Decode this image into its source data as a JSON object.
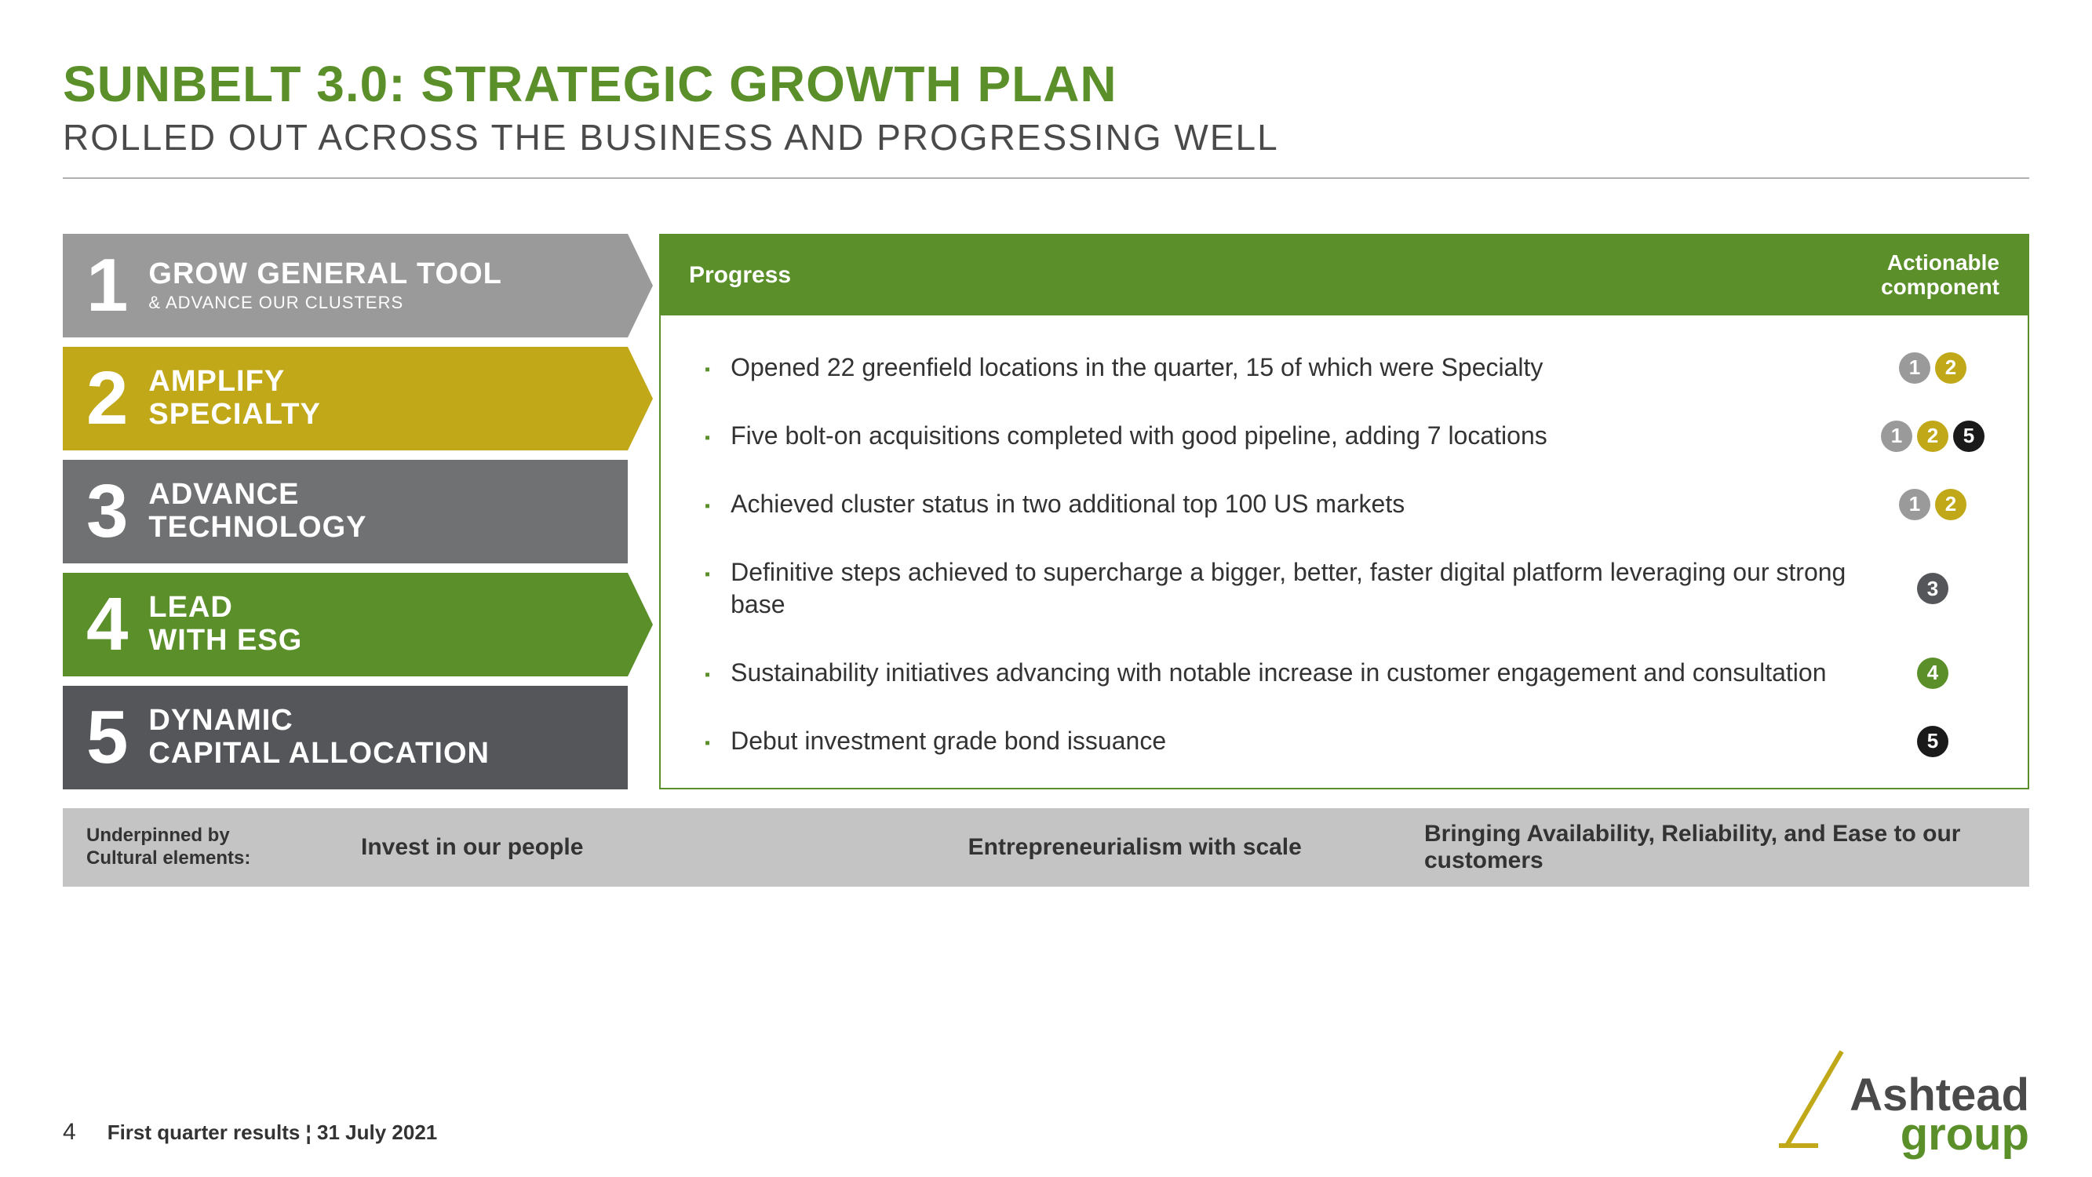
{
  "colors": {
    "green": "#5a8f29",
    "grey_text": "#4a4a4a",
    "pillar_grey_light": "#9a9a9a",
    "pillar_yellow": "#c0a818",
    "pillar_grey_med": "#6f7173",
    "pillar_grey_dark": "#54565a",
    "badge_grey": "#9a9a9a",
    "badge_yellow": "#c0a818",
    "badge_darkgrey": "#54565a",
    "badge_green": "#5a8f29",
    "badge_black": "#1a1a1a"
  },
  "title": "SUNBELT 3.0: STRATEGIC GROWTH PLAN",
  "subtitle": "ROLLED OUT ACROSS THE BUSINESS AND PROGRESSING WELL",
  "pillars": [
    {
      "num": "1",
      "line1": "GROW GENERAL TOOL",
      "line2": "",
      "sub": "& ADVANCE OUR CLUSTERS",
      "bg": "#9a9a9a",
      "arrow": true,
      "acls": "c0"
    },
    {
      "num": "2",
      "line1": "AMPLIFY",
      "line2": "SPECIALTY",
      "sub": "",
      "bg": "#c0a818",
      "arrow": true,
      "acls": "c1"
    },
    {
      "num": "3",
      "line1": "ADVANCE",
      "line2": "TECHNOLOGY",
      "sub": "",
      "bg": "#6f7173",
      "arrow": false,
      "acls": ""
    },
    {
      "num": "4",
      "line1": "LEAD",
      "line2": "WITH ESG",
      "sub": "",
      "bg": "#5a8f29",
      "arrow": true,
      "acls": "c3"
    },
    {
      "num": "5",
      "line1": "DYNAMIC",
      "line2": "CAPITAL ALLOCATION",
      "sub": "",
      "bg": "#54565a",
      "arrow": false,
      "acls": ""
    }
  ],
  "progress_header_left": "Progress",
  "progress_header_right1": "Actionable",
  "progress_header_right2": "component",
  "progress_items": [
    {
      "text": "Opened 22 greenfield locations in the quarter, 15 of which were Specialty",
      "badges": [
        {
          "n": "1",
          "c": "#9a9a9a"
        },
        {
          "n": "2",
          "c": "#c0a818"
        }
      ]
    },
    {
      "text": "Five bolt-on acquisitions completed with good pipeline, adding 7 locations",
      "badges": [
        {
          "n": "1",
          "c": "#9a9a9a"
        },
        {
          "n": "2",
          "c": "#c0a818"
        },
        {
          "n": "5",
          "c": "#1a1a1a"
        }
      ]
    },
    {
      "text": "Achieved cluster status in two additional top 100 US markets",
      "badges": [
        {
          "n": "1",
          "c": "#9a9a9a"
        },
        {
          "n": "2",
          "c": "#c0a818"
        }
      ]
    },
    {
      "text": "Definitive steps achieved to supercharge a bigger, better, faster digital platform leveraging our strong base",
      "badges": [
        {
          "n": "3",
          "c": "#54565a"
        }
      ]
    },
    {
      "text": "Sustainability initiatives advancing with notable increase in customer engagement and consultation",
      "badges": [
        {
          "n": "4",
          "c": "#5a8f29"
        }
      ]
    },
    {
      "text": "Debut investment grade bond issuance",
      "badges": [
        {
          "n": "5",
          "c": "#1a1a1a"
        }
      ]
    }
  ],
  "cultural_lead1": "Underpinned by",
  "cultural_lead2": "Cultural elements:",
  "cultural_e1": "Invest in our people",
  "cultural_e2": "Entrepreneurialism with scale",
  "cultural_e3": "Bringing Availability, Reliability, and Ease to our customers",
  "footer": {
    "page": "4",
    "text": "First quarter results ¦ 31 July 2021"
  },
  "logo": {
    "line1": "Ashtead",
    "line2": "group"
  }
}
